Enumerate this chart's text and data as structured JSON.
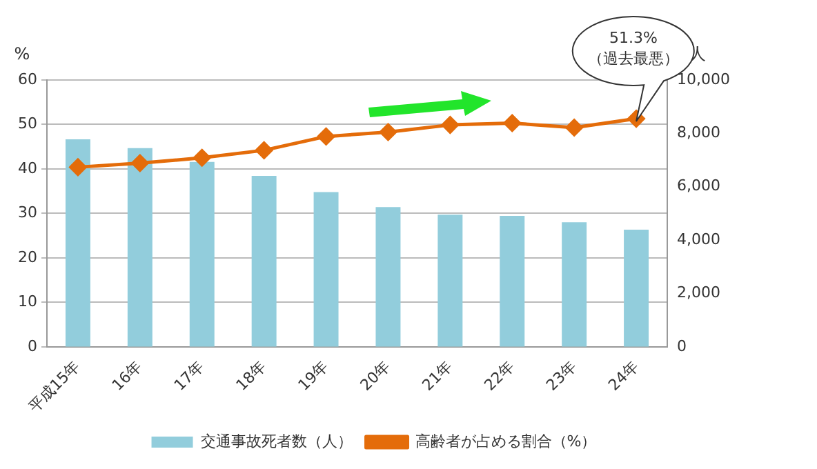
{
  "chart_data": {
    "type": "bar",
    "ylabel": "%",
    "y2label": "人",
    "categories": [
      "平成15年",
      "16年",
      "17年",
      "18年",
      "19年",
      "20年",
      "21年",
      "22年",
      "23年",
      "24年"
    ],
    "series": [
      {
        "name": "交通事故死者数（人）",
        "axis": "y2",
        "color": "#92cddc",
        "values": [
          7780,
          7450,
          6930,
          6410,
          5800,
          5240,
          4950,
          4910,
          4670,
          4390
        ]
      },
      {
        "name": "高齢者が占める割合（%）",
        "type": "line",
        "axis": "y",
        "color": "#e46c0a",
        "marker": "diamond",
        "values": [
          40.4,
          41.3,
          42.5,
          44.2,
          47.3,
          48.3,
          49.9,
          50.3,
          49.3,
          51.3
        ]
      }
    ],
    "ylim": [
      0,
      60
    ],
    "yticks": [
      0,
      10,
      20,
      30,
      40,
      50,
      60
    ],
    "y2lim": [
      0,
      10000
    ],
    "y2ticks": [
      0,
      {
        "value": 2000,
        "label": "2,000"
      },
      {
        "value": 4000,
        "label": "4,000"
      },
      {
        "value": 6000,
        "label": "6,000"
      },
      {
        "value": 8000,
        "label": "8,000"
      },
      {
        "value": 10000,
        "label": "10,000"
      }
    ],
    "grid": "y",
    "legend": "bottom",
    "annotations": [
      "51.3%\n（過去最悪）"
    ]
  }
}
